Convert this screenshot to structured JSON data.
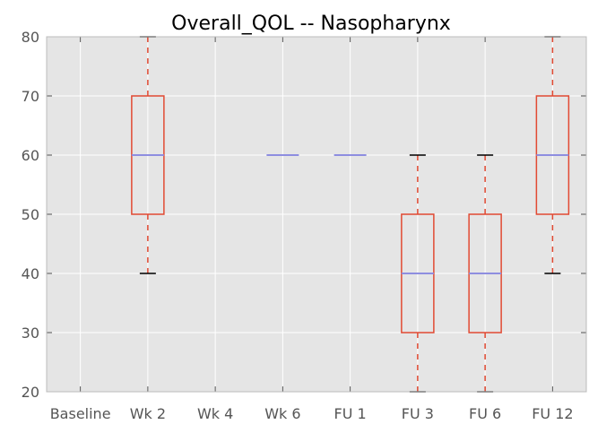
{
  "chart_data": {
    "type": "boxplot",
    "title": "Overall_QOL -- Nasopharynx",
    "xlabel": "",
    "ylabel": "",
    "ylim": [
      20,
      80
    ],
    "yticks": [
      20,
      30,
      40,
      50,
      60,
      70,
      80
    ],
    "categories": [
      "Baseline",
      "Wk 2",
      "Wk 4",
      "Wk 6",
      "FU 1",
      "FU 3",
      "FU 6",
      "FU 12"
    ],
    "boxes": [
      null,
      {
        "whislo": 40,
        "q1": 50,
        "med": 60,
        "q3": 70,
        "whishi": 80
      },
      null,
      {
        "whislo": 60,
        "q1": 60,
        "med": 60,
        "q3": 60,
        "whishi": 60
      },
      {
        "whislo": 60,
        "q1": 60,
        "med": 60,
        "q3": 60,
        "whishi": 60
      },
      {
        "whislo": 20,
        "q1": 30,
        "med": 40,
        "q3": 50,
        "whishi": 60
      },
      {
        "whislo": 20,
        "q1": 30,
        "med": 40,
        "q3": 50,
        "whishi": 60
      },
      {
        "whislo": 40,
        "q1": 50,
        "med": 60,
        "q3": 70,
        "whishi": 80
      }
    ],
    "grid": true,
    "colors": {
      "background": "#e5e5e5",
      "grid": "#ffffff",
      "box": "#e24a33",
      "whisker": "#e24a33",
      "cap": "#000000",
      "median": "#8e8ee0"
    }
  }
}
